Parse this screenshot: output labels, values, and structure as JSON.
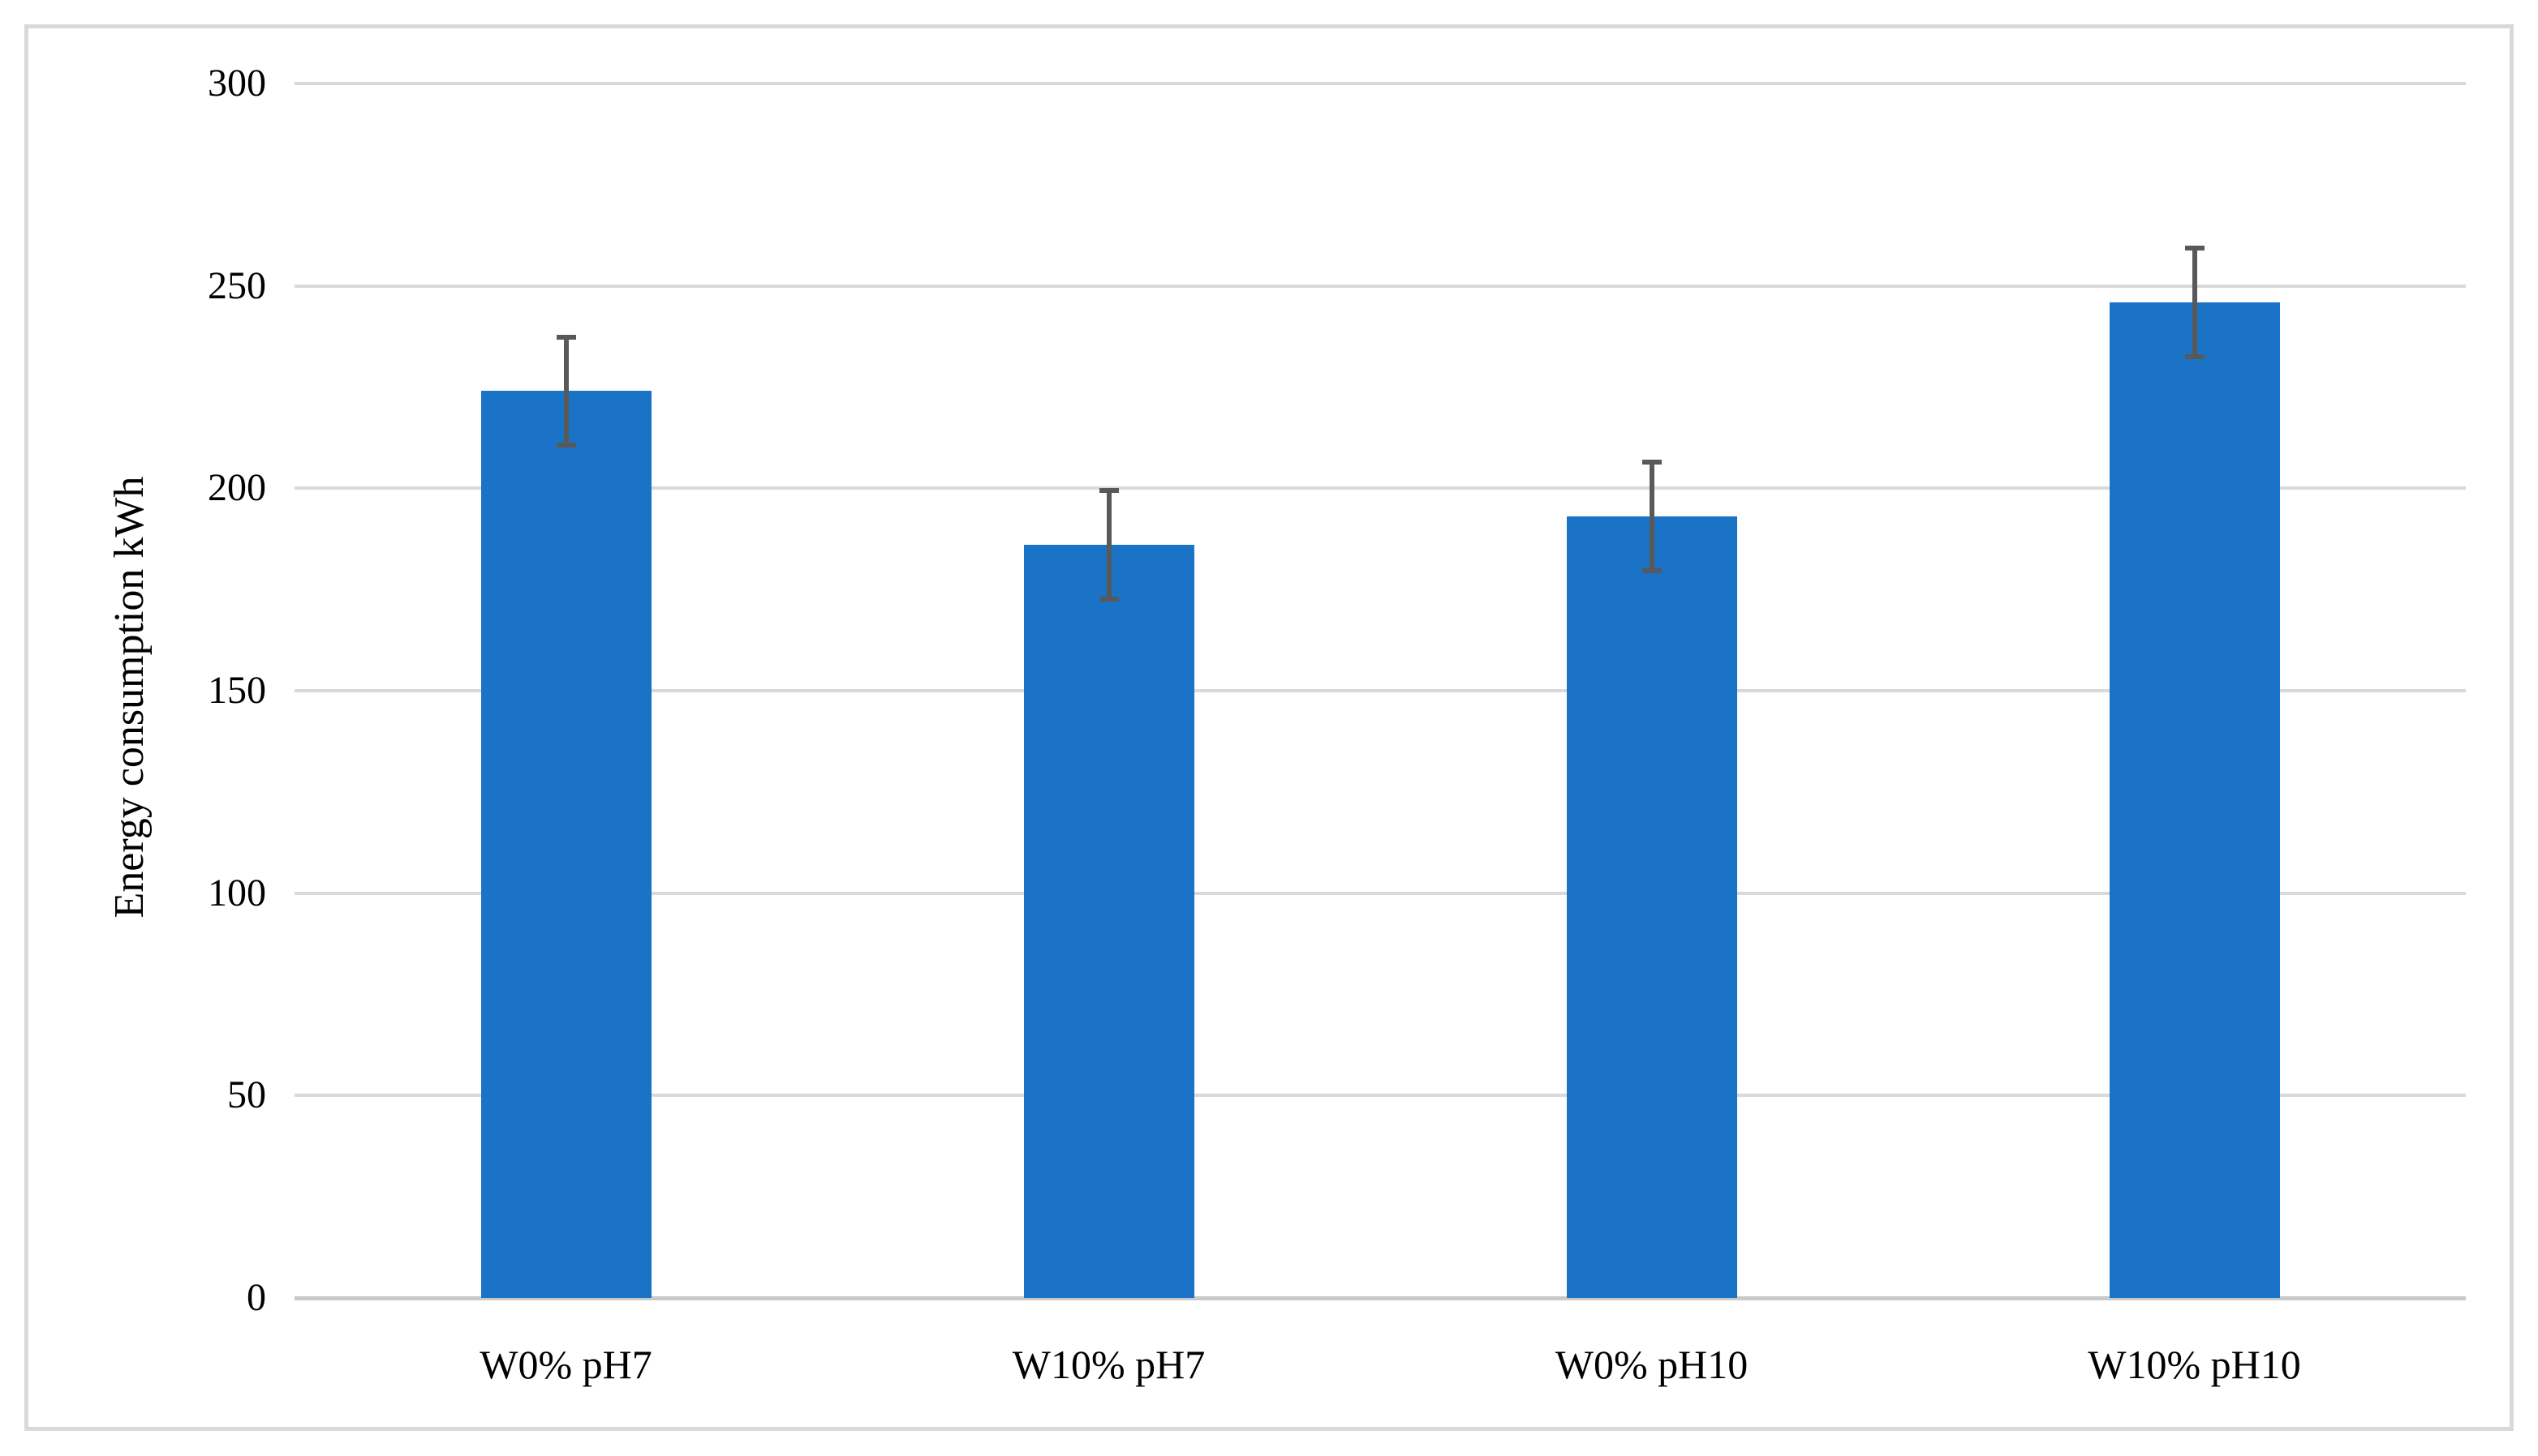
{
  "figure": {
    "background": "#FFFFFF",
    "border_color": "#D9D9D9"
  },
  "chart_data": {
    "type": "bar",
    "title": "",
    "xlabel": "",
    "ylabel": "Energy consumption kWh",
    "categories": [
      "W0% pH7",
      "W10% pH7",
      "W0% pH10",
      "W10% pH10"
    ],
    "values": [
      224,
      186,
      193,
      246
    ],
    "error_bars": [
      14,
      14,
      14,
      14
    ],
    "ylim": [
      0,
      300
    ],
    "yticks": [
      0,
      50,
      100,
      150,
      200,
      250,
      300
    ],
    "grid": "horizontal",
    "legend": "none",
    "bar_color": "#1B73C8",
    "error_bar_color": "#595959",
    "gridline_color": "#D9D9D9",
    "axis_line_color": "#C9C9C9",
    "tick_label_color": "#000000"
  }
}
